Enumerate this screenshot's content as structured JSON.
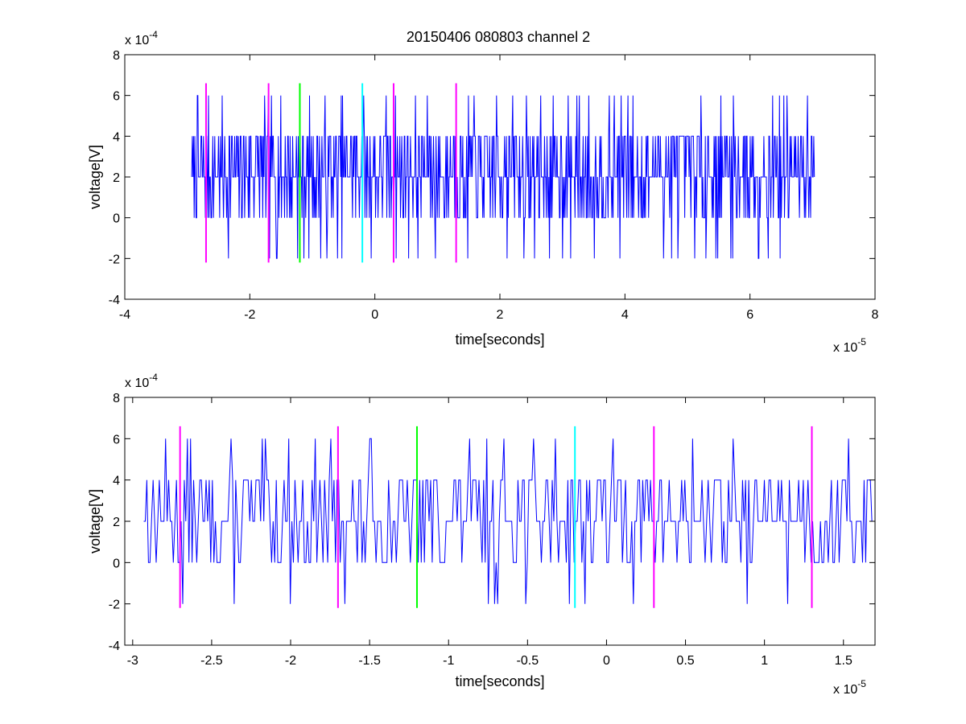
{
  "title": "20150406 080803 channel 2",
  "chart_data": [
    {
      "type": "line",
      "title": "20150406 080803 channel 2",
      "xlabel": "time[seconds]",
      "ylabel": "voltage[V]",
      "x_multiplier": "x 10",
      "x_exponent": "-5",
      "y_multiplier": "x 10",
      "y_exponent": "-4",
      "xlim": [
        -4e-05,
        8e-05
      ],
      "ylim": [
        -0.0004,
        0.0008
      ],
      "xticks": [
        -4,
        -2,
        0,
        2,
        4,
        6,
        8
      ],
      "yticks": [
        -4,
        -2,
        0,
        2,
        4,
        6,
        8
      ],
      "signal": {
        "color": "#0000ff",
        "x_start": -2.93e-05,
        "x_end": 7.03e-05,
        "levels": [
          -0.0002,
          0,
          0.0002,
          0.0004,
          0.0006
        ],
        "seed": 7,
        "n": 1000
      },
      "markers": [
        {
          "x": -2.7e-05,
          "color": "#ff00ff"
        },
        {
          "x": -1.7e-05,
          "color": "#ff00ff"
        },
        {
          "x": -1.2e-05,
          "color": "#00ff00"
        },
        {
          "x": -2e-06,
          "color": "#00ffff"
        },
        {
          "x": 3e-06,
          "color": "#ff00ff"
        },
        {
          "x": 1.3e-05,
          "color": "#ff00ff"
        }
      ],
      "marker_range": [
        -0.00022,
        0.00066
      ],
      "grid": false
    },
    {
      "type": "line",
      "title": "",
      "xlabel": "time[seconds]",
      "ylabel": "voltage[V]",
      "x_multiplier": "x 10",
      "x_exponent": "-5",
      "y_multiplier": "x 10",
      "y_exponent": "-4",
      "xlim": [
        -3.05e-05,
        1.7e-05
      ],
      "ylim": [
        -0.0004,
        0.0008
      ],
      "xticks": [
        -3,
        -2.5,
        -2,
        -1.5,
        -1,
        -0.5,
        0,
        0.5,
        1,
        1.5
      ],
      "yticks": [
        -4,
        -2,
        0,
        2,
        4,
        6,
        8
      ],
      "signal": {
        "color": "#0000ff",
        "x_start": -2.93e-05,
        "x_end": 1.7e-05,
        "levels": [
          -0.0002,
          0,
          0.0002,
          0.0004,
          0.0006
        ],
        "seed": 13,
        "n": 470
      },
      "markers": [
        {
          "x": -2.7e-05,
          "color": "#ff00ff"
        },
        {
          "x": -1.7e-05,
          "color": "#ff00ff"
        },
        {
          "x": -1.2e-05,
          "color": "#00ff00"
        },
        {
          "x": -2e-06,
          "color": "#00ffff"
        },
        {
          "x": 3e-06,
          "color": "#ff00ff"
        },
        {
          "x": 1.3e-05,
          "color": "#ff00ff"
        }
      ],
      "marker_range": [
        -0.00022,
        0.00066
      ],
      "grid": false
    }
  ]
}
